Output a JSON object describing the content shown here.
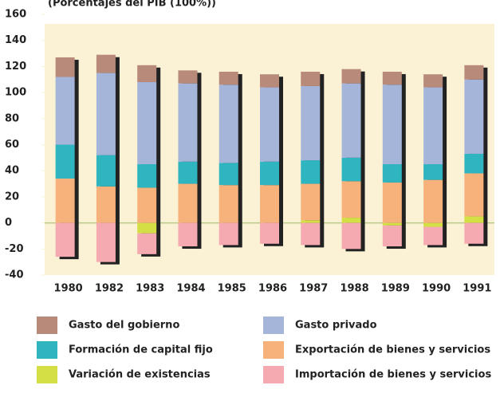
{
  "chart_data": {
    "type": "stacked_bar",
    "subtitle": "(Porcentajes del PIB (100%))",
    "categories": [
      "1980",
      "1982",
      "1983",
      "1984",
      "1985",
      "1986",
      "1987",
      "1988",
      "1989",
      "1990",
      "1991"
    ],
    "series": [
      {
        "name": "Gasto del gobierno",
        "color": "#b78a7a",
        "values": [
          15,
          14,
          13,
          10,
          10,
          10,
          11,
          11,
          10,
          10,
          11
        ]
      },
      {
        "name": "Gasto privado",
        "color": "#a5b4d9",
        "values": [
          52,
          63,
          63,
          60,
          60,
          57,
          57,
          57,
          61,
          59,
          57
        ]
      },
      {
        "name": "Formación de capital fijo",
        "color": "#2fb5c0",
        "values": [
          26,
          24,
          18,
          17,
          17,
          18,
          18,
          18,
          14,
          12,
          15
        ]
      },
      {
        "name": "Exportación de bienes y servicios",
        "color": "#f7b27c",
        "values": [
          34,
          28,
          27,
          30,
          29,
          29,
          28,
          28,
          31,
          33,
          33
        ]
      },
      {
        "name": "Variación de existencias",
        "color": "#d3df45",
        "values": [
          0,
          0,
          -8,
          0,
          0,
          0,
          2,
          4,
          -2,
          -3,
          5
        ]
      },
      {
        "name": "Importación de bienes y servicios",
        "color": "#f5aab2",
        "values": [
          -26,
          -30,
          -16,
          -18,
          -17,
          -16,
          -17,
          -20,
          -16,
          -14,
          -16
        ]
      }
    ],
    "ylim": [
      -40,
      160
    ],
    "yticks": [
      -40,
      -20,
      0,
      20,
      40,
      60,
      80,
      100,
      120,
      140,
      160
    ],
    "grid": false
  }
}
